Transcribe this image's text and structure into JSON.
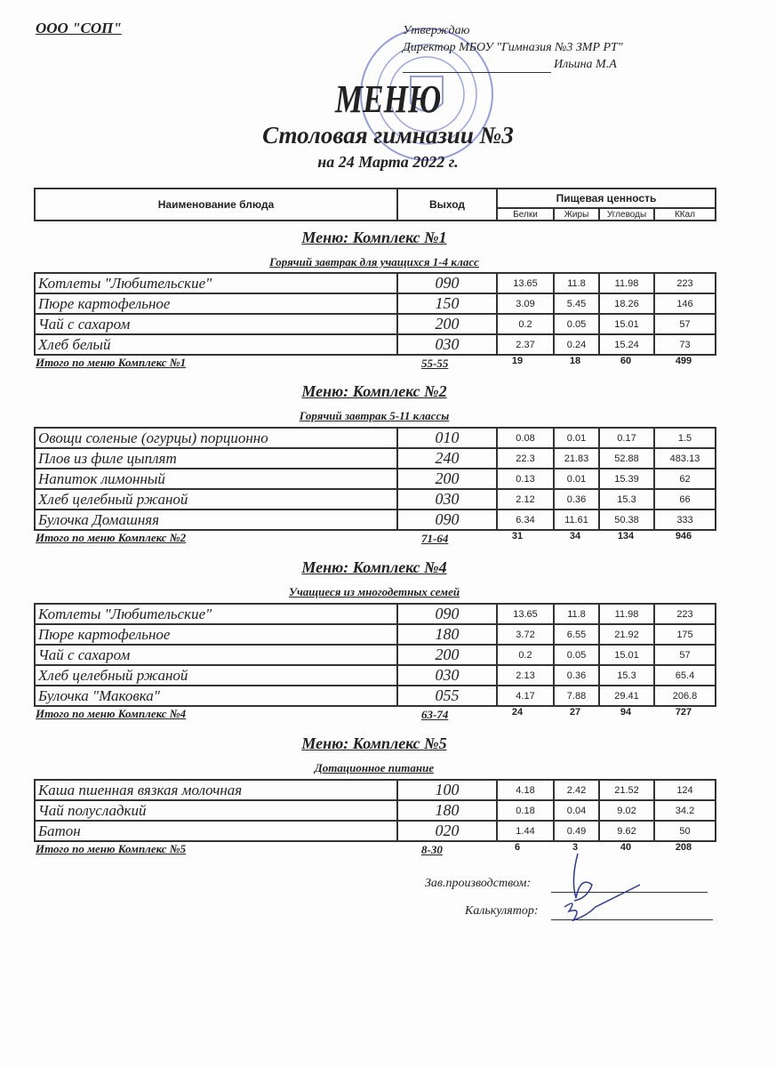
{
  "header": {
    "organization": "ООО \"СОП\"",
    "approval": {
      "line1": "Утверждаю",
      "line2": "Директор МБОУ \"Гимназия №3 ЗМР РТ\"",
      "line3": "Ильина М.А"
    },
    "title": "МЕНЮ",
    "subtitle": "Столовая гимназии №3",
    "date": "на 24 Марта 2022 г."
  },
  "table_header": {
    "name": "Наименование блюда",
    "output": "Выход",
    "nutrition": "Пищевая ценность",
    "columns": [
      "Белки",
      "Жиры",
      "Углеводы",
      "ККал"
    ]
  },
  "sections": [
    {
      "title": "Меню: Комплекс №1",
      "subtitle": "Горячий завтрак для учащихся 1-4 класс",
      "items": [
        {
          "name": "Котлеты  \"Любительские\"",
          "output": "090",
          "values": [
            "13.65",
            "11.8",
            "11.98",
            "223"
          ]
        },
        {
          "name": "Пюре картофельное",
          "output": "150",
          "values": [
            "3.09",
            "5.45",
            "18.26",
            "146"
          ]
        },
        {
          "name": "Чай с сахаром",
          "output": "200",
          "values": [
            "0.2",
            "0.05",
            "15.01",
            "57"
          ]
        },
        {
          "name": "Хлеб белый",
          "output": "030",
          "values": [
            "2.37",
            "0.24",
            "15.24",
            "73"
          ]
        }
      ],
      "total": {
        "label": "Итого по меню Комплекс №1",
        "price": "55-55",
        "values": [
          "19",
          "18",
          "60",
          "499"
        ]
      }
    },
    {
      "title": "Меню: Комплекс №2",
      "subtitle": "Горячий завтрак 5-11 классы",
      "items": [
        {
          "name": "Овощи соленые (огурцы) порционно",
          "output": "010",
          "values": [
            "0.08",
            "0.01",
            "0.17",
            "1.5"
          ]
        },
        {
          "name": "Плов из филе цыплят",
          "output": "240",
          "values": [
            "22.3",
            "21.83",
            "52.88",
            "483.13"
          ]
        },
        {
          "name": "Напиток лимонный",
          "output": "200",
          "values": [
            "0.13",
            "0.01",
            "15.39",
            "62"
          ]
        },
        {
          "name": "Хлеб  целебный ржаной",
          "output": "030",
          "values": [
            "2.12",
            "0.36",
            "15.3",
            "66"
          ]
        },
        {
          "name": "Булочка Домашняя",
          "output": "090",
          "values": [
            "6.34",
            "11.61",
            "50.38",
            "333"
          ]
        }
      ],
      "total": {
        "label": "Итого по меню Комплекс №2",
        "price": "71-64",
        "values": [
          "31",
          "34",
          "134",
          "946"
        ]
      }
    },
    {
      "title": "Меню: Комплекс №4",
      "subtitle": "Учащиеся из многодетных семей",
      "items": [
        {
          "name": "Котлеты  \"Любительские\"",
          "output": "090",
          "values": [
            "13.65",
            "11.8",
            "11.98",
            "223"
          ]
        },
        {
          "name": "Пюре картофельное",
          "output": "180",
          "values": [
            "3.72",
            "6.55",
            "21.92",
            "175"
          ]
        },
        {
          "name": "Чай с сахаром",
          "output": "200",
          "values": [
            "0.2",
            "0.05",
            "15.01",
            "57"
          ]
        },
        {
          "name": "Хлеб  целебный ржаной",
          "output": "030",
          "values": [
            "2.13",
            "0.36",
            "15.3",
            "65.4"
          ]
        },
        {
          "name": "Булочка \"Маковка\"",
          "output": "055",
          "values": [
            "4.17",
            "7.88",
            "29.41",
            "206.8"
          ]
        }
      ],
      "total": {
        "label": "Итого по меню Комплекс №4",
        "price": "63-74",
        "values": [
          "24",
          "27",
          "94",
          "727"
        ]
      }
    },
    {
      "title": "Меню: Комплекс №5",
      "subtitle": "Дотационное питание",
      "items": [
        {
          "name": "Каша пшенная вязкая молочная",
          "output": "100",
          "values": [
            "4.18",
            "2.42",
            "21.52",
            "124"
          ]
        },
        {
          "name": "Чай полусладкий",
          "output": "180",
          "values": [
            "0.18",
            "0.04",
            "9.02",
            "34.2"
          ]
        },
        {
          "name": "Батон",
          "output": "020",
          "values": [
            "1.44",
            "0.49",
            "9.62",
            "50"
          ]
        }
      ],
      "total": {
        "label": "Итого по меню Комплекс №5",
        "price": "8-30",
        "values": [
          "6",
          "3",
          "40",
          "208"
        ]
      }
    }
  ],
  "signatures": {
    "production_head": "Зав.производством:",
    "calculator": "Калькулятор:"
  },
  "colors": {
    "stamp": "#3b4fd0",
    "ink": "#222222"
  }
}
